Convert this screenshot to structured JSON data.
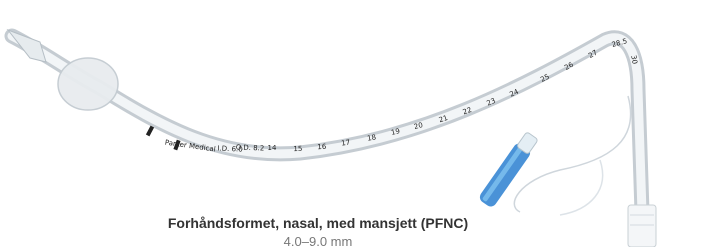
{
  "product": {
    "markings": [
      "Parker Medical",
      "I.D. 6.0",
      "O.D. 8.2",
      "14",
      "15",
      "16",
      "17",
      "18",
      "19",
      "20",
      "21",
      "22",
      "23",
      "24",
      "25",
      "26",
      "27",
      "28.5",
      "30"
    ],
    "title": "Forhåndsformet, nasal, med mansjett (PFNC)",
    "subtitle": "4.0–9.0 mm"
  }
}
